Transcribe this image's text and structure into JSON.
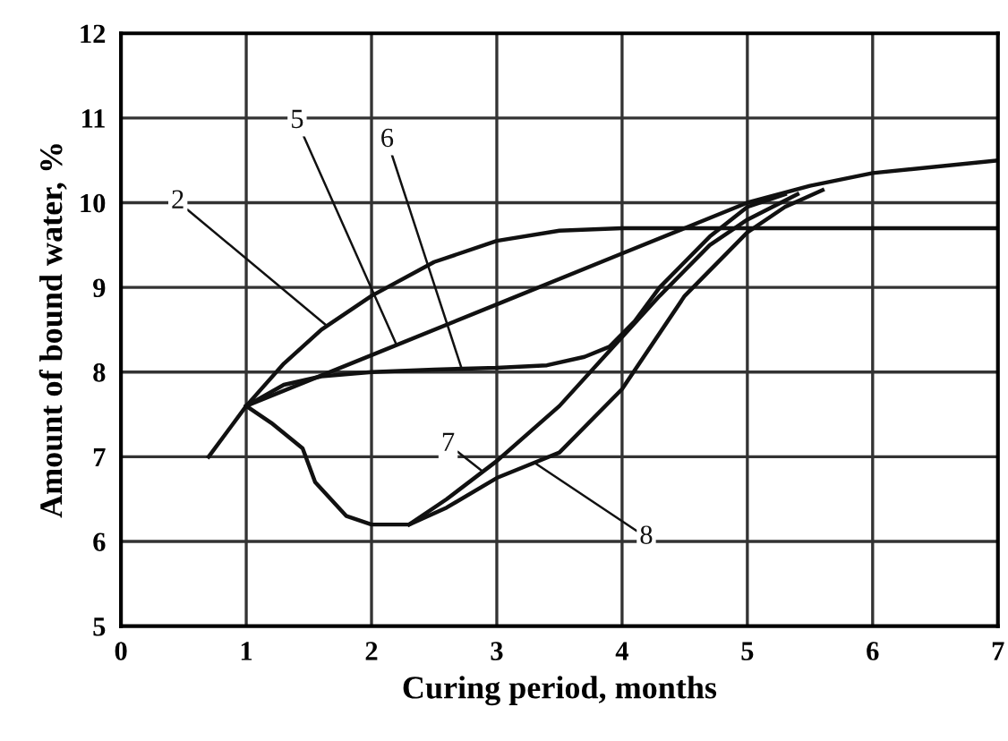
{
  "chart_data": {
    "type": "line",
    "xlabel": "Curing period, months",
    "ylabel": "Amount of bound water, %",
    "xlim": [
      0,
      7
    ],
    "ylim": [
      5,
      12
    ],
    "xticks": [
      0,
      1,
      2,
      3,
      4,
      5,
      6,
      7
    ],
    "yticks": [
      5,
      6,
      7,
      8,
      9,
      10,
      11,
      12
    ],
    "grid": true,
    "legend": false,
    "marker": "none",
    "line_style": "solid",
    "series": [
      {
        "name": "2",
        "color": "#111111",
        "x": [
          0.7,
          0.85,
          1,
          1.3,
          1.6,
          2,
          2.5,
          3,
          3.5,
          4,
          5,
          6,
          7
        ],
        "values": [
          7.0,
          7.3,
          7.6,
          8.1,
          8.5,
          8.9,
          9.3,
          9.55,
          9.67,
          9.7,
          9.7,
          9.7,
          9.7
        ]
      },
      {
        "name": "5",
        "color": "#111111",
        "x": [
          1,
          2,
          3,
          4,
          5,
          5.5,
          6,
          7
        ],
        "values": [
          7.6,
          8.2,
          8.8,
          9.4,
          10.0,
          10.2,
          10.35,
          10.5
        ]
      },
      {
        "name": "6",
        "color": "#111111",
        "x": [
          1,
          1.3,
          1.6,
          2,
          2.5,
          3,
          3.4,
          3.7,
          3.9,
          4.1,
          4.3,
          4.7,
          5,
          5.3
        ],
        "values": [
          7.6,
          7.85,
          7.95,
          8.0,
          8.03,
          8.05,
          8.08,
          8.18,
          8.3,
          8.6,
          9.0,
          9.6,
          9.95,
          10.1
        ]
      },
      {
        "name": "7",
        "color": "#111111",
        "x": [
          2.3,
          2.6,
          3,
          3.5,
          3.9,
          4.3,
          4.7,
          5,
          5.4
        ],
        "values": [
          6.2,
          6.5,
          6.95,
          7.6,
          8.25,
          8.9,
          9.5,
          9.8,
          10.1
        ]
      },
      {
        "name": "8",
        "color": "#111111",
        "x": [
          1,
          1.2,
          1.45,
          1.55,
          1.8,
          2,
          2.3,
          2.6,
          3,
          3.5,
          4,
          4.5,
          5,
          5.3,
          5.6
        ],
        "values": [
          7.6,
          7.4,
          7.1,
          6.7,
          6.3,
          6.2,
          6.2,
          6.4,
          6.75,
          7.05,
          7.8,
          8.9,
          9.65,
          9.95,
          10.15
        ]
      }
    ]
  }
}
